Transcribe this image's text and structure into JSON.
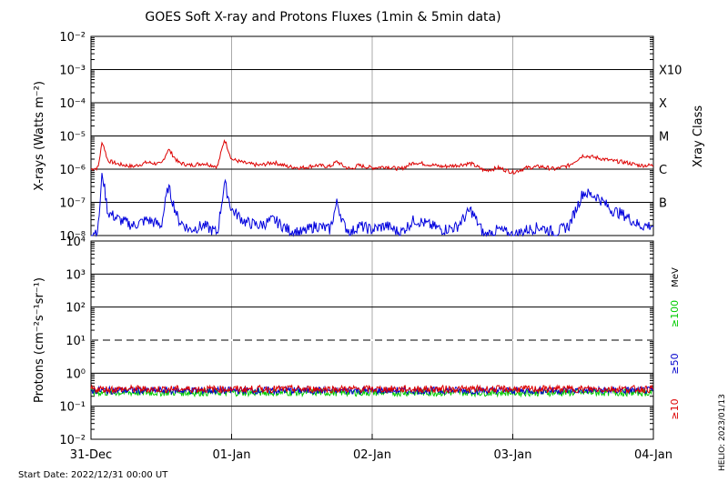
{
  "title": "GOES Soft X-ray and Protons Fluxes   (1min & 5min data)",
  "start_date": "Start Date: 2022/12/31 00:00 UT",
  "credit": "HELIO: 2023/01/13",
  "colors": {
    "xray_long": "#dd0000",
    "xray_short": "#0000dd",
    "proton_10": "#dd0000",
    "proton_50": "#0000cc",
    "proton_100": "#00cc00",
    "gridline": "#000000",
    "day_divider": "#aaaaaa"
  },
  "chart_data": [
    {
      "type": "line",
      "name": "xray-panel",
      "ylabel": "X-rays (Watts m⁻²)",
      "y_scale": "log",
      "ylim": [
        1e-08,
        0.01
      ],
      "x_ticks": [
        "31-Dec",
        "01-Jan",
        "02-Jan",
        "03-Jan",
        "04-Jan"
      ],
      "y_ticks": [
        "10⁻²",
        "10⁻³",
        "10⁻⁴",
        "10⁻⁵",
        "10⁻⁶",
        "10⁻⁷",
        "10⁻⁸"
      ],
      "right_axis_label": "Xray Class",
      "class_labels": [
        {
          "label": "X10",
          "value": 0.001
        },
        {
          "label": "X",
          "value": 0.0001
        },
        {
          "label": "M",
          "value": 1e-05
        },
        {
          "label": "C",
          "value": 1e-06
        },
        {
          "label": "B",
          "value": 1e-07
        }
      ],
      "grid": true,
      "series": [
        {
          "key": "long",
          "x_days": [
            0,
            0.05,
            0.08,
            0.12,
            0.2,
            0.3,
            0.4,
            0.5,
            0.55,
            0.62,
            0.7,
            0.8,
            0.9,
            0.95,
            1.0,
            1.1,
            1.2,
            1.3,
            1.4,
            1.5,
            1.6,
            1.7,
            1.75,
            1.8,
            1.85,
            1.9,
            2.0,
            2.1,
            2.2,
            2.3,
            2.5,
            2.6,
            2.7,
            2.8,
            2.9,
            3.0,
            3.1,
            3.2,
            3.3,
            3.4,
            3.5,
            3.6,
            3.7,
            3.8,
            3.9,
            4.0
          ],
          "values": [
            1e-06,
            1.1e-06,
            7e-06,
            1.8e-06,
            1.4e-06,
            1.2e-06,
            1.6e-06,
            1.4e-06,
            4e-06,
            1.6e-06,
            1.3e-06,
            1.5e-06,
            1.2e-06,
            8e-06,
            2e-06,
            1.5e-06,
            1.3e-06,
            1.6e-06,
            1.2e-06,
            1.1e-06,
            1.3e-06,
            1.2e-06,
            1.7e-06,
            1.2e-06,
            1e-06,
            1.3e-06,
            1.1e-06,
            1.2e-06,
            1e-06,
            1.6e-06,
            1.2e-06,
            1.3e-06,
            1.5e-06,
            9e-07,
            1.1e-06,
            8e-07,
            1.1e-06,
            1.2e-06,
            1e-06,
            1.3e-06,
            2.6e-06,
            2.2e-06,
            1.8e-06,
            1.6e-06,
            1.3e-06,
            1.3e-06
          ]
        },
        {
          "key": "short",
          "x_days": [
            0,
            0.05,
            0.08,
            0.12,
            0.2,
            0.3,
            0.4,
            0.5,
            0.55,
            0.62,
            0.7,
            0.8,
            0.9,
            0.95,
            1.0,
            1.1,
            1.2,
            1.3,
            1.4,
            1.5,
            1.6,
            1.7,
            1.75,
            1.8,
            1.85,
            1.9,
            2.0,
            2.1,
            2.2,
            2.3,
            2.5,
            2.6,
            2.7,
            2.8,
            2.9,
            3.0,
            3.1,
            3.2,
            3.3,
            3.4,
            3.5,
            3.6,
            3.7,
            3.8,
            3.9,
            4.0
          ],
          "values": [
            1.2e-08,
            1.5e-08,
            8e-07,
            5e-08,
            3e-08,
            2e-08,
            3e-08,
            2e-08,
            3e-07,
            3e-08,
            1.5e-08,
            2e-08,
            1.2e-08,
            4e-07,
            6e-08,
            2.5e-08,
            2e-08,
            3e-08,
            1.5e-08,
            1.2e-08,
            2e-08,
            1.5e-08,
            1e-07,
            2e-08,
            1.2e-08,
            2e-08,
            1.5e-08,
            2e-08,
            1.2e-08,
            3e-08,
            1.5e-08,
            1.8e-08,
            6e-08,
            1e-08,
            1.5e-08,
            1e-08,
            1.5e-08,
            1.8e-08,
            1.2e-08,
            2e-08,
            2e-07,
            1.5e-07,
            6e-08,
            4e-08,
            2e-08,
            2e-08
          ]
        }
      ]
    },
    {
      "type": "line",
      "name": "proton-panel",
      "ylabel": "Protons (cm⁻²s⁻¹sr⁻¹)",
      "y_scale": "log",
      "ylim": [
        0.01,
        10000.0
      ],
      "x_ticks": [
        "31-Dec",
        "01-Jan",
        "02-Jan",
        "03-Jan",
        "04-Jan"
      ],
      "y_ticks": [
        "10⁴",
        "10³",
        "10²",
        "10¹",
        "10⁰",
        "10⁻¹",
        "10⁻²"
      ],
      "right_unit": "MeV",
      "grid": true,
      "threshold_line": 10,
      "series": [
        {
          "name": "≥10",
          "key": "p10",
          "level": 0.33
        },
        {
          "name": "≥50",
          "key": "p50",
          "level": 0.3
        },
        {
          "name": "≥100",
          "key": "p100",
          "level": 0.26
        }
      ]
    }
  ]
}
